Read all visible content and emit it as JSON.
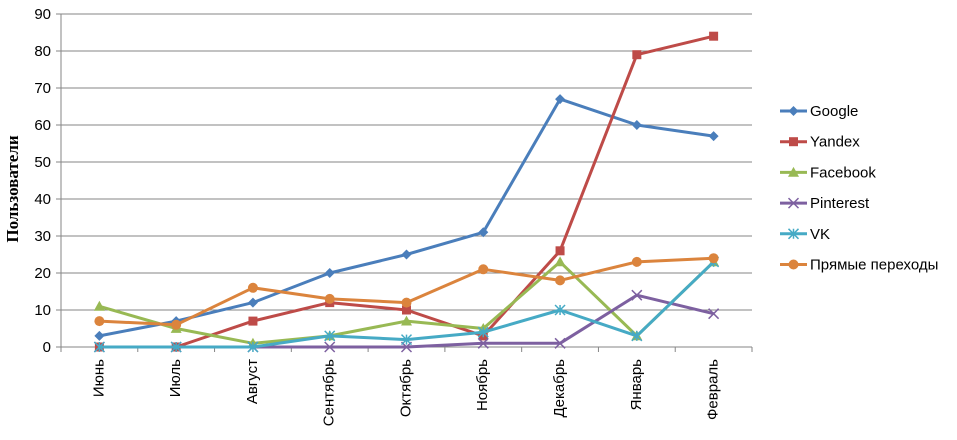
{
  "chart_data": {
    "type": "line",
    "ylabel": "Пользователи",
    "xlabel": "",
    "ylim": [
      0,
      90
    ],
    "yticks": [
      0,
      10,
      20,
      30,
      40,
      50,
      60,
      70,
      80,
      90
    ],
    "grid": "horizontal",
    "legend_position": "right",
    "categories": [
      "Июнь",
      "Июль",
      "Август",
      "Сентябрь",
      "Октябрь",
      "Ноябрь",
      "Декабрь",
      "Январь",
      "Февраль"
    ],
    "series": [
      {
        "name": "Google",
        "color": "#4A7EBB",
        "marker": "diamond",
        "values": [
          3,
          7,
          12,
          20,
          25,
          31,
          67,
          60,
          57
        ]
      },
      {
        "name": "Yandex",
        "color": "#BE4B48",
        "marker": "square",
        "values": [
          0,
          0,
          7,
          12,
          10,
          3,
          26,
          79,
          84
        ]
      },
      {
        "name": "Facebook",
        "color": "#98B954",
        "marker": "triangle",
        "values": [
          11,
          5,
          1,
          3,
          7,
          5,
          23,
          3,
          23
        ]
      },
      {
        "name": "Pinterest",
        "color": "#7D60A0",
        "marker": "x",
        "values": [
          0,
          0,
          0,
          0,
          0,
          1,
          1,
          14,
          9
        ]
      },
      {
        "name": "VK",
        "color": "#46AAC5",
        "marker": "star",
        "values": [
          0,
          0,
          0,
          3,
          2,
          4,
          10,
          3,
          23
        ]
      },
      {
        "name": "Прямые переходы",
        "color": "#DB843D",
        "marker": "circle",
        "values": [
          7,
          6,
          16,
          13,
          12,
          21,
          18,
          23,
          24
        ]
      }
    ]
  }
}
